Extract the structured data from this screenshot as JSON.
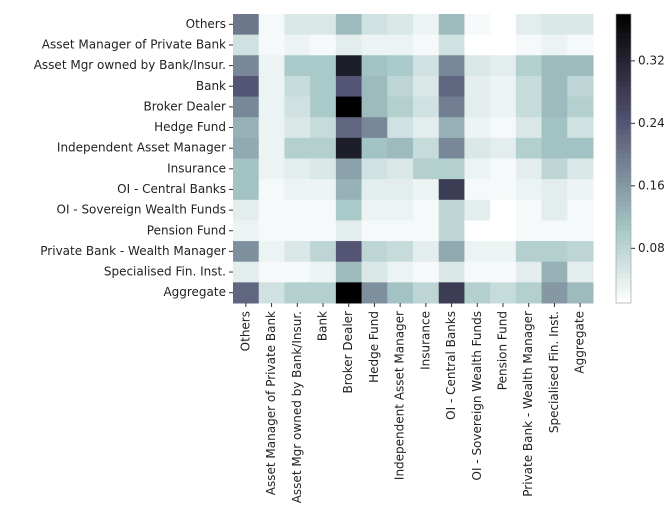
{
  "chart_data": {
    "type": "heatmap",
    "x": [
      "Others",
      "Asset Manager of Private Bank",
      "Asset Mgr owned by Bank/Insur.",
      "Bank",
      "Broker Dealer",
      "Hedge Fund",
      "Independent Asset Manager",
      "Insurance",
      "OI - Central Banks",
      "OI - Sovereign Wealth Funds",
      "Pension Fund",
      "Private Bank - Wealth Manager",
      "Specialised Fin. Inst.",
      "Aggregate"
    ],
    "y": [
      "Others",
      "Asset Manager of Private Bank",
      "Asset Mgr owned by Bank/Insur.",
      "Bank",
      "Broker Dealer",
      "Hedge Fund",
      "Independent Asset Manager",
      "Insurance",
      "OI - Central Banks",
      "OI - Sovereign Wealth Funds",
      "Pension Fund",
      "Private Bank - Wealth Manager",
      "Specialised Fin. Inst.",
      "Aggregate"
    ],
    "values": [
      [
        0.2,
        0.02,
        0.05,
        0.05,
        0.12,
        0.06,
        0.05,
        0.03,
        0.12,
        0.02,
        0.01,
        0.04,
        0.05,
        0.05
      ],
      [
        0.06,
        0.02,
        0.03,
        0.02,
        0.04,
        0.03,
        0.03,
        0.02,
        0.06,
        0.01,
        0.01,
        0.02,
        0.03,
        0.02
      ],
      [
        0.18,
        0.03,
        0.1,
        0.1,
        0.33,
        0.11,
        0.1,
        0.06,
        0.18,
        0.05,
        0.04,
        0.09,
        0.12,
        0.12
      ],
      [
        0.24,
        0.03,
        0.07,
        0.1,
        0.24,
        0.12,
        0.08,
        0.05,
        0.22,
        0.04,
        0.03,
        0.07,
        0.12,
        0.08
      ],
      [
        0.18,
        0.03,
        0.06,
        0.1,
        0.38,
        0.12,
        0.09,
        0.06,
        0.19,
        0.04,
        0.03,
        0.07,
        0.12,
        0.09
      ],
      [
        0.13,
        0.03,
        0.05,
        0.07,
        0.22,
        0.18,
        0.06,
        0.04,
        0.13,
        0.03,
        0.02,
        0.05,
        0.11,
        0.06
      ],
      [
        0.14,
        0.03,
        0.09,
        0.09,
        0.33,
        0.11,
        0.12,
        0.07,
        0.18,
        0.05,
        0.04,
        0.09,
        0.11,
        0.11
      ],
      [
        0.11,
        0.03,
        0.04,
        0.05,
        0.15,
        0.06,
        0.05,
        0.09,
        0.09,
        0.03,
        0.02,
        0.04,
        0.08,
        0.05
      ],
      [
        0.11,
        0.02,
        0.03,
        0.03,
        0.13,
        0.04,
        0.04,
        0.03,
        0.28,
        0.02,
        0.02,
        0.03,
        0.04,
        0.03
      ],
      [
        0.04,
        0.02,
        0.02,
        0.02,
        0.1,
        0.03,
        0.03,
        0.02,
        0.08,
        0.04,
        0.01,
        0.02,
        0.04,
        0.02
      ],
      [
        0.03,
        0.02,
        0.02,
        0.02,
        0.04,
        0.02,
        0.02,
        0.02,
        0.08,
        0.01,
        0.01,
        0.02,
        0.02,
        0.02
      ],
      [
        0.17,
        0.03,
        0.05,
        0.08,
        0.24,
        0.08,
        0.07,
        0.04,
        0.14,
        0.03,
        0.03,
        0.09,
        0.09,
        0.08
      ],
      [
        0.04,
        0.02,
        0.02,
        0.03,
        0.12,
        0.05,
        0.03,
        0.02,
        0.05,
        0.02,
        0.02,
        0.04,
        0.13,
        0.04
      ],
      [
        0.22,
        0.06,
        0.09,
        0.09,
        0.38,
        0.17,
        0.11,
        0.08,
        0.28,
        0.09,
        0.07,
        0.09,
        0.16,
        0.12
      ]
    ],
    "colormap": "bone_r",
    "zlim": [
      0.01,
      0.38
    ],
    "zticks": [
      0.08,
      0.16,
      0.24,
      0.32
    ]
  }
}
